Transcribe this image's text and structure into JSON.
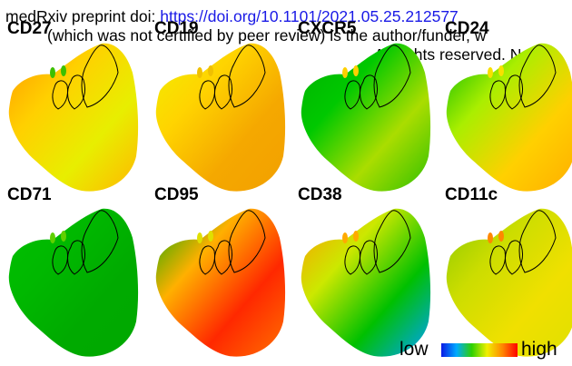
{
  "header": {
    "line1_prefix": "medRxiv preprint doi: ",
    "line1_doi": "https://doi.org/10.1101/2021.05.25.212577",
    "line2": "(which was not certified by peer review) is the author/funder, w",
    "line3": "All rights reserved. No r"
  },
  "panels": [
    {
      "label": "CD27",
      "colors": [
        "#ff9900",
        "#ffd000",
        "#e8ee00",
        "#ffb800"
      ],
      "cluster": "#3cc000"
    },
    {
      "label": "CD19",
      "colors": [
        "#f0f000",
        "#ffd400",
        "#f5a800",
        "#f2a000"
      ],
      "cluster": "#f0c000"
    },
    {
      "label": "CXCR5",
      "colors": [
        "#00b000",
        "#00c800",
        "#aadd00",
        "#30c000"
      ],
      "cluster": "#ffd000"
    },
    {
      "label": "CD24",
      "colors": [
        "#00b800",
        "#aaee00",
        "#ffd000",
        "#ffae00"
      ],
      "cluster": "#f8e000"
    },
    {
      "label": "CD71",
      "colors": [
        "#00c000",
        "#00b800",
        "#00aa00",
        "#00a800"
      ],
      "cluster": "#60d000"
    },
    {
      "label": "CD95",
      "colors": [
        "#00a800",
        "#ffb000",
        "#ff2800",
        "#ff7000"
      ],
      "cluster": "#e0e000"
    },
    {
      "label": "CD38",
      "colors": [
        "#ff9900",
        "#cce800",
        "#00c000",
        "#00a0ff"
      ],
      "cluster": "#ffaa00"
    },
    {
      "label": "CD11c",
      "colors": [
        "#88c800",
        "#ccdd00",
        "#f0e000",
        "#e0e000"
      ],
      "cluster": "#ff8800"
    }
  ],
  "legend": {
    "low": "low",
    "high": "high"
  }
}
